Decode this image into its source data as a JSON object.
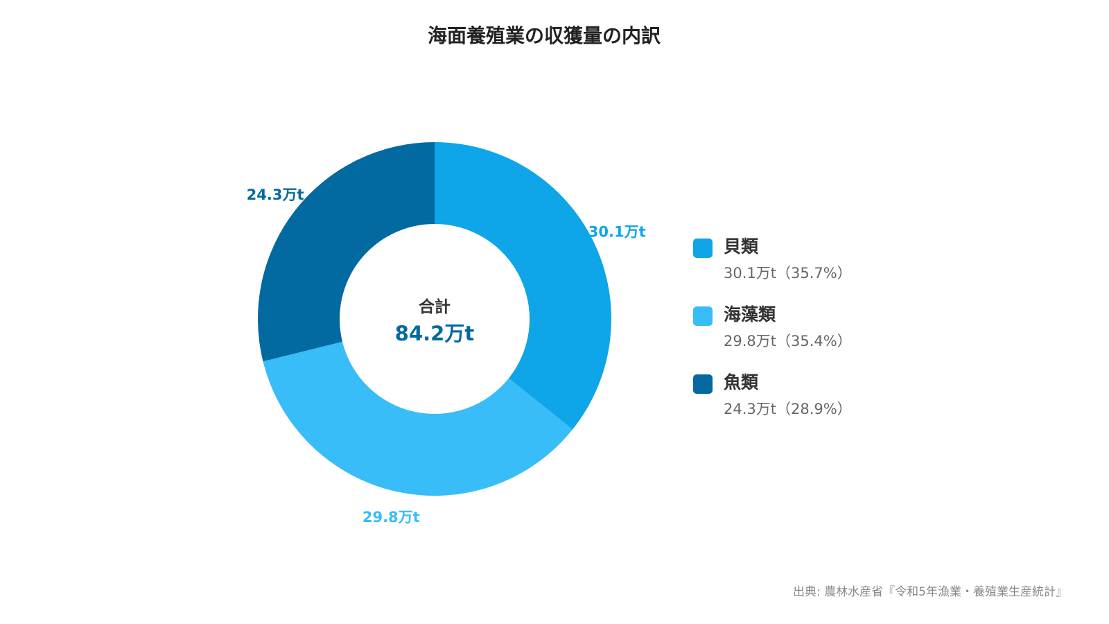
{
  "chart_data": {
    "type": "pie",
    "subtype": "donut",
    "title": "海面養殖業の収獲量の内訳",
    "unit": "万t",
    "slices": [
      {
        "label": "貝類",
        "value": 30.1,
        "value_label": "30.1万t",
        "percent_label": "30.1万t（35.7%）",
        "color": "#0ea5e9"
      },
      {
        "label": "海藻類",
        "value": 29.8,
        "value_label": "29.8万t",
        "percent_label": "29.8万t（35.4%）",
        "color": "#38bdf8"
      },
      {
        "label": "魚類",
        "value": 24.3,
        "value_label": "24.3万t",
        "percent_label": "24.3万t（28.9%）",
        "color": "#0369a1"
      }
    ],
    "center": {
      "label": "合計",
      "value": "84.2万t"
    },
    "legend_position": "right"
  },
  "source": "出典: 農林水産省『令和5年漁業・養殖業生産統計』"
}
